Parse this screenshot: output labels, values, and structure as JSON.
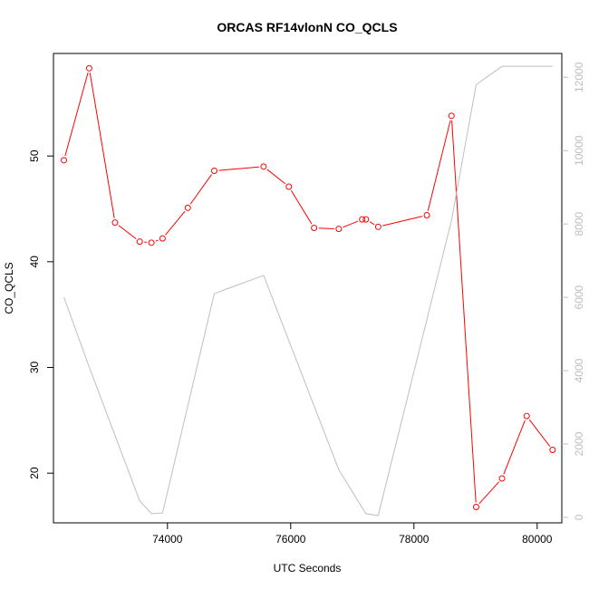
{
  "chart_data": {
    "type": "line",
    "title": "ORCAS RF14vlonN CO_QCLS",
    "xlabel": "UTC Seconds",
    "ylabel": "CO_QCLS",
    "xlim": [
      72150,
      80400
    ],
    "ylim": [
      15.3,
      59.7
    ],
    "y2lim": [
      -150,
      12650
    ],
    "x_ticks": [
      74000,
      76000,
      78000,
      80000
    ],
    "x_tick_labels": [
      "74000",
      "76000",
      "78000",
      "80000"
    ],
    "y_ticks": [
      20,
      30,
      40,
      50
    ],
    "y_tick_labels": [
      "20",
      "30",
      "40",
      "50"
    ],
    "y2_ticks": [
      0,
      2000,
      4000,
      6000,
      8000,
      10000,
      12000
    ],
    "y2_tick_labels": [
      "0",
      "2000",
      "4000",
      "6000",
      "8000",
      "10000",
      "12000"
    ],
    "grid": false,
    "series": [
      {
        "axis": "left",
        "color": "#ff0000",
        "markers": "open-circle",
        "x": [
          72320,
          72730,
          73150,
          73550,
          73740,
          73920,
          74330,
          74760,
          75560,
          75970,
          76380,
          76780,
          77160,
          77220,
          77420,
          78210,
          78610,
          79010,
          79430,
          79830,
          80250
        ],
        "y": [
          49.6,
          58.3,
          43.7,
          41.9,
          41.8,
          42.2,
          45.1,
          48.6,
          49.0,
          47.1,
          43.2,
          43.1,
          44.0,
          44.0,
          43.3,
          44.4,
          53.8,
          16.8,
          19.5,
          25.4,
          22.2
        ]
      },
      {
        "axis": "right",
        "color": "#bebebe",
        "markers": "none",
        "x": [
          72320,
          72730,
          73550,
          73740,
          73920,
          74760,
          75560,
          76780,
          77220,
          77420,
          78610,
          79010,
          79430,
          79830,
          80250
        ],
        "y": [
          6000,
          4100,
          450,
          100,
          120,
          6100,
          6600,
          1300,
          100,
          50,
          8100,
          11800,
          12300,
          12300,
          12300
        ]
      }
    ]
  }
}
